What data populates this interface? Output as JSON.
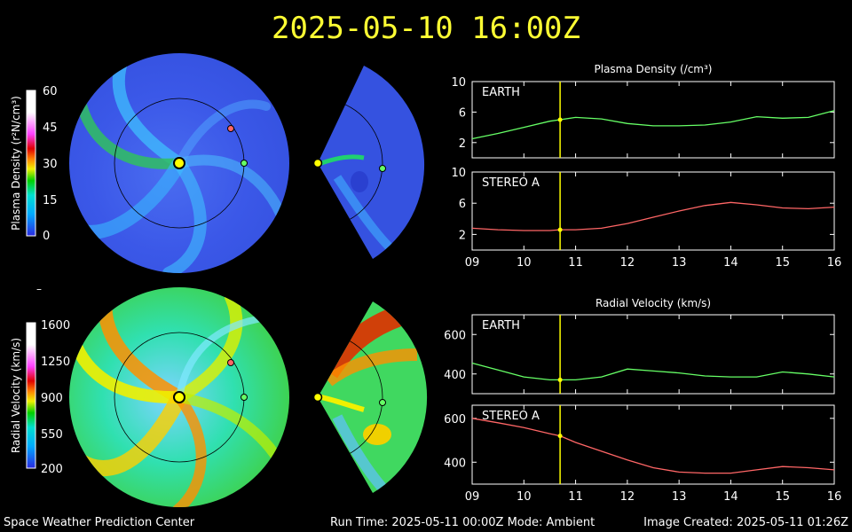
{
  "header": {
    "timestamp": "2025-05-10 16:00Z"
  },
  "footer": {
    "center": "Space Weather Prediction Center",
    "run_time": "Run Time: 2025-05-11 00:00Z  Mode: Ambient",
    "image_created": "Image Created: 2025-05-11 01:26Z"
  },
  "colors": {
    "title": "#ffff33",
    "earth": "#66ff66",
    "stereo_a": "#ff6666",
    "time_marker": "#ffff00",
    "axis": "#ffffff"
  },
  "colorbars": [
    {
      "label": "Plasma Density (r²N/cm³)",
      "ticks": [
        "60",
        "45",
        "30",
        "15",
        "0"
      ]
    },
    {
      "label": "Radial Velocity (km/s)",
      "ticks": [
        "1600",
        "1250",
        "900",
        "550",
        "200"
      ]
    }
  ],
  "dash": "–",
  "chart_data": [
    {
      "type": "line",
      "title": "Plasma Density (/cm³)",
      "panels": [
        {
          "name": "EARTH",
          "ylim": [
            0,
            10
          ],
          "yticks": [
            2,
            6,
            10
          ],
          "x": [
            9,
            9.5,
            10,
            10.5,
            10.7,
            11,
            11.5,
            12,
            12.5,
            13,
            13.5,
            14,
            14.5,
            15,
            15.5,
            16
          ],
          "y": [
            2.5,
            3.2,
            4.0,
            4.8,
            5.0,
            5.3,
            5.1,
            4.5,
            4.2,
            4.2,
            4.3,
            4.7,
            5.4,
            5.2,
            5.3,
            6.2
          ]
        },
        {
          "name": "STEREO A",
          "ylim": [
            0,
            10
          ],
          "yticks": [
            2,
            6,
            10
          ],
          "x": [
            9,
            9.5,
            10,
            10.5,
            10.7,
            11,
            11.5,
            12,
            12.5,
            13,
            13.5,
            14,
            14.5,
            15,
            15.5,
            16
          ],
          "y": [
            2.8,
            2.6,
            2.5,
            2.5,
            2.6,
            2.6,
            2.8,
            3.4,
            4.2,
            5.0,
            5.7,
            6.1,
            5.8,
            5.4,
            5.3,
            5.5
          ]
        }
      ],
      "xlim": [
        9,
        16
      ],
      "xticks": [
        "09",
        "10",
        "11",
        "12",
        "13",
        "14",
        "15",
        "16"
      ],
      "time_marker": 10.7
    },
    {
      "type": "line",
      "title": "Radial Velocity (km/s)",
      "panels": [
        {
          "name": "EARTH",
          "ylim": [
            300,
            700
          ],
          "yticks": [
            400,
            600
          ],
          "x": [
            9,
            9.5,
            10,
            10.5,
            10.7,
            11,
            11.5,
            12,
            12.5,
            13,
            13.5,
            14,
            14.5,
            15,
            15.5,
            16
          ],
          "y": [
            455,
            420,
            385,
            370,
            370,
            370,
            385,
            425,
            415,
            405,
            390,
            385,
            385,
            410,
            400,
            385
          ]
        },
        {
          "name": "STEREO A",
          "ylim": [
            300,
            660
          ],
          "yticks": [
            400,
            600
          ],
          "x": [
            9,
            9.5,
            10,
            10.5,
            10.7,
            11,
            11.5,
            12,
            12.5,
            13,
            13.5,
            14,
            14.5,
            15,
            15.5,
            16
          ],
          "y": [
            600,
            580,
            558,
            530,
            520,
            490,
            450,
            410,
            375,
            355,
            350,
            350,
            365,
            380,
            375,
            365
          ]
        }
      ],
      "xlim": [
        9,
        16
      ],
      "xticks": [
        "09",
        "10",
        "11",
        "12",
        "13",
        "14",
        "15",
        "16"
      ],
      "time_marker": 10.7
    }
  ]
}
